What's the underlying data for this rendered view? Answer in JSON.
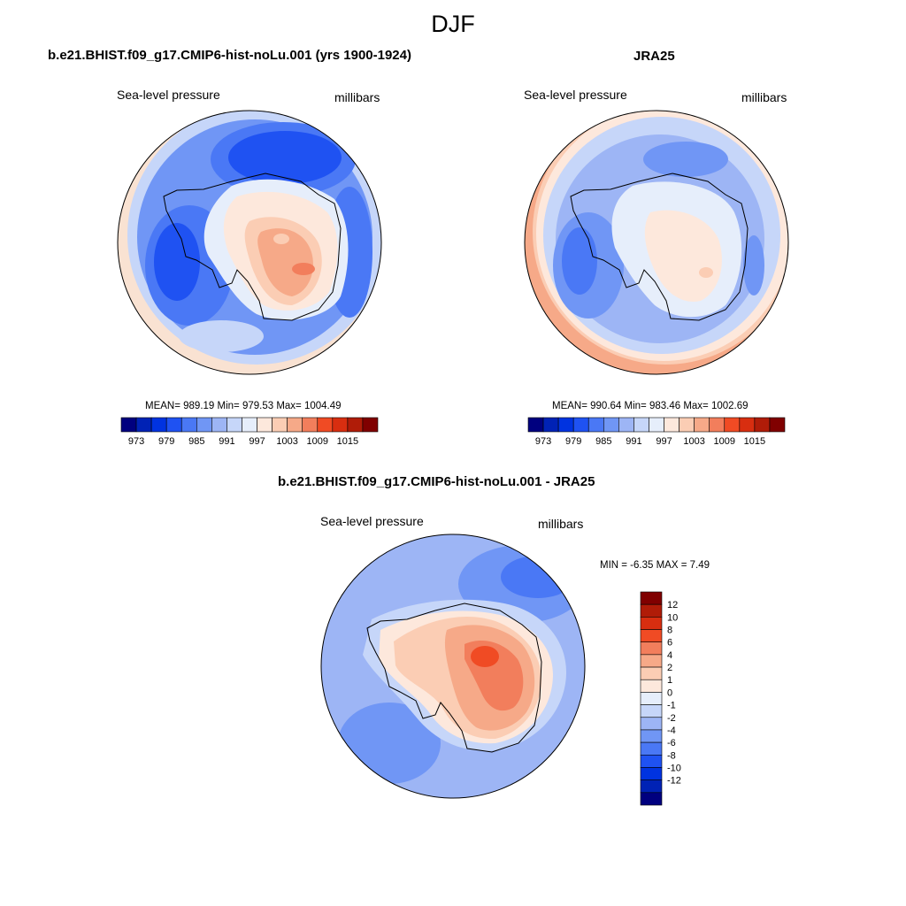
{
  "figure": {
    "title": "DJF"
  },
  "colors": {
    "palette": [
      "#00007f",
      "#0022b5",
      "#0033e0",
      "#1f52f2",
      "#4a78f5",
      "#7096f5",
      "#9db5f5",
      "#c6d6f9",
      "#e6eefb",
      "#fde8dc",
      "#fbcdb4",
      "#f6a988",
      "#f27e5c",
      "#f04b24",
      "#d82e10",
      "#b01c08",
      "#800000"
    ],
    "coast": "#000000"
  },
  "panels": [
    {
      "id": "model",
      "title": "b.e21.BHIST.f09_g17.CMIP6-hist-noLu.001 (yrs 1900-1924)",
      "left_label": "Sea-level pressure",
      "right_label": "millibars",
      "stats": "MEAN= 989.19  Min= 979.53  Max= 1004.49",
      "colorbar_ticks": [
        "973",
        "979",
        "985",
        "991",
        "997",
        "1003",
        "1009",
        "1015"
      ]
    },
    {
      "id": "obs",
      "title": "JRA25",
      "left_label": "Sea-level pressure",
      "right_label": "millibars",
      "stats": "MEAN= 990.64  Min= 983.46  Max= 1002.69",
      "colorbar_ticks": [
        "973",
        "979",
        "985",
        "991",
        "997",
        "1003",
        "1009",
        "1015"
      ]
    },
    {
      "id": "diff",
      "title": "b.e21.BHIST.f09_g17.CMIP6-hist-noLu.001 - JRA25",
      "left_label": "Sea-level pressure",
      "right_label": "millibars",
      "stats": "MIN =  -6.35 MAX =   7.49",
      "colorbar_ticks": [
        "12",
        "10",
        "8",
        "6",
        "4",
        "2",
        "1",
        "0",
        "-1",
        "-2",
        "-4",
        "-6",
        "-8",
        "-10",
        "-12"
      ]
    }
  ]
}
